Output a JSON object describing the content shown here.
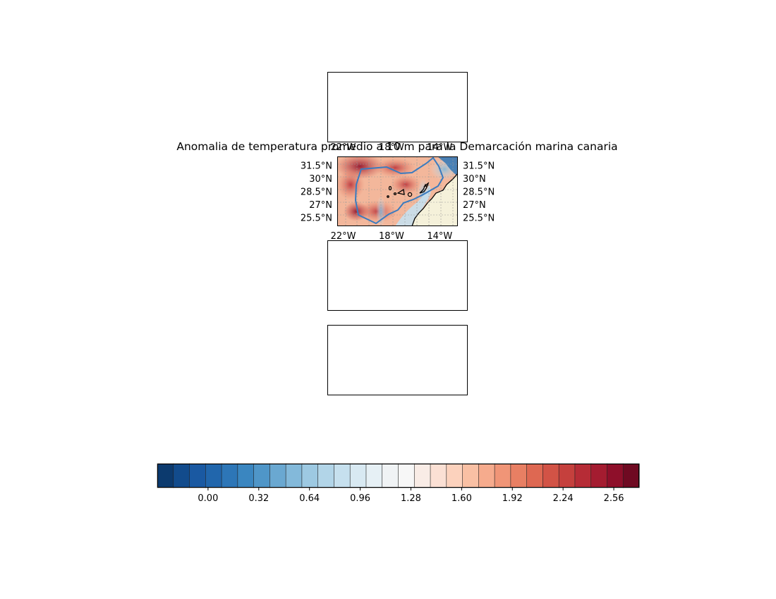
{
  "figure": {
    "title": "Anomalia de temperatura promedio a 10 m para la Demarcación marina canaria"
  },
  "map": {
    "lon_tick_labels": [
      "22°W",
      "18°W",
      "14°W"
    ],
    "lat_tick_labels": [
      "31.5°N",
      "30°N",
      "28.5°N",
      "27°N",
      "25.5°N"
    ],
    "lon_values": [
      -22,
      -18,
      -14
    ],
    "lat_values": [
      31.5,
      30,
      28.5,
      27,
      25.5
    ],
    "extent": {
      "lon_min": -22.5,
      "lon_max": -12.5,
      "lat_min": 24.5,
      "lat_max": 32.5
    },
    "colors": {
      "land": "#f5f1da",
      "coastline": "#000000",
      "demarcation_boundary": "#3a7bbf",
      "gridline": "#9a9a9a"
    }
  },
  "colorbar": {
    "colormap": "RdBu_r",
    "tick_labels": [
      "0.00",
      "0.32",
      "0.64",
      "0.96",
      "1.28",
      "1.60",
      "1.92",
      "2.24",
      "2.56"
    ],
    "tick_values": [
      0.0,
      0.32,
      0.64,
      0.96,
      1.28,
      1.6,
      1.92,
      2.24,
      2.56
    ],
    "vmin": -0.32,
    "vmax": 2.72,
    "n_levels": 38,
    "colors": [
      "#0c3a6e",
      "#124b8c",
      "#1a59a2",
      "#2166ac",
      "#2d76b7",
      "#3a86c0",
      "#4f96c8",
      "#6aa8d1",
      "#83b9da",
      "#9dc9e2",
      "#b2d5e8",
      "#c6e0ee",
      "#d8e9f2",
      "#e6f0f5",
      "#f0f3f5",
      "#f7f7f7",
      "#f9ece6",
      "#fbe0d4",
      "#fcd2bd",
      "#f9c0a4",
      "#f6ab8d",
      "#f09577",
      "#e87f63",
      "#de6852",
      "#d25346",
      "#c5403d",
      "#b62c36",
      "#a41c30",
      "#8e0f2a",
      "#6f0a22"
    ]
  }
}
